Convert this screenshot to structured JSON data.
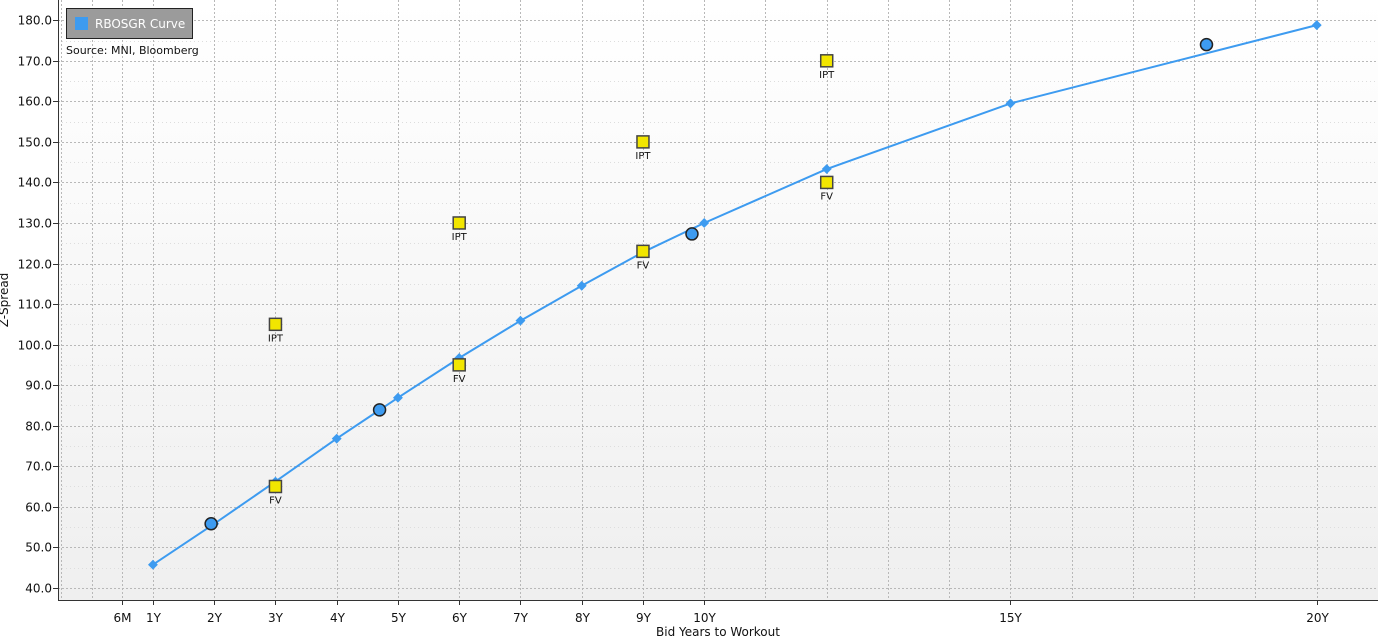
{
  "chart_data": {
    "type": "line",
    "source": "Source: MNI, Bloomberg",
    "xlabel": "Bid Years to Workout",
    "ylabel": "Z-Spread",
    "ylim": [
      37,
      185
    ],
    "xlim": [
      -0.55,
      21.0
    ],
    "legend_placement": "top-left",
    "grid": true,
    "y_ticks": [
      {
        "value": 40,
        "label": "40.0"
      },
      {
        "value": 50,
        "label": "50.0"
      },
      {
        "value": 60,
        "label": "60.0"
      },
      {
        "value": 70,
        "label": "70.0"
      },
      {
        "value": 80,
        "label": "80.0"
      },
      {
        "value": 90,
        "label": "90.0"
      },
      {
        "value": 100,
        "label": "100.0"
      },
      {
        "value": 110,
        "label": "110.0"
      },
      {
        "value": 120,
        "label": "120.0"
      },
      {
        "value": 130,
        "label": "130.0"
      },
      {
        "value": 140,
        "label": "140.0"
      },
      {
        "value": 150,
        "label": "150.0"
      },
      {
        "value": 160,
        "label": "160.0"
      },
      {
        "value": 170,
        "label": "170.0"
      },
      {
        "value": 180,
        "label": "180.0"
      }
    ],
    "x_ticks": [
      {
        "value": 0.5,
        "label": "6M"
      },
      {
        "value": 1,
        "label": "1Y"
      },
      {
        "value": 2,
        "label": "2Y"
      },
      {
        "value": 3,
        "label": "3Y"
      },
      {
        "value": 4,
        "label": "4Y"
      },
      {
        "value": 5,
        "label": "5Y"
      },
      {
        "value": 6,
        "label": "6Y"
      },
      {
        "value": 7,
        "label": "7Y"
      },
      {
        "value": 8,
        "label": "8Y"
      },
      {
        "value": 9,
        "label": "9Y"
      },
      {
        "value": 10,
        "label": "10Y"
      },
      {
        "value": 15,
        "label": "15Y"
      },
      {
        "value": 20,
        "label": "20Y"
      }
    ],
    "x_minor_ticks": [
      -0.5,
      0,
      11,
      12,
      13,
      14,
      16,
      17,
      18,
      19
    ],
    "series": [
      {
        "name": "RBOSGR Curve",
        "kind": "line",
        "color": "#3d9bf0",
        "points": [
          {
            "x": 1,
            "y": 45.7
          },
          {
            "x": 2,
            "y": 55.8
          },
          {
            "x": 3,
            "y": 66.2
          },
          {
            "x": 4,
            "y": 76.8
          },
          {
            "x": 5,
            "y": 86.9
          },
          {
            "x": 6,
            "y": 96.7
          },
          {
            "x": 7,
            "y": 105.9
          },
          {
            "x": 8,
            "y": 114.5
          },
          {
            "x": 9,
            "y": 122.8
          },
          {
            "x": 10,
            "y": 130.0
          },
          {
            "x": 12,
            "y": 143.3
          },
          {
            "x": 15,
            "y": 159.5
          },
          {
            "x": 20,
            "y": 178.8
          }
        ]
      },
      {
        "kind": "bonds",
        "color": "#3d9bf0",
        "points": [
          {
            "x": 1.95,
            "y": 55.8
          },
          {
            "x": 4.7,
            "y": 83.9
          },
          {
            "x": 9.8,
            "y": 127.3
          },
          {
            "x": 18.2,
            "y": 174.0
          }
        ]
      },
      {
        "kind": "IPT",
        "color": "#f2e600",
        "points": [
          {
            "x": 3,
            "y": 105,
            "label": "IPT"
          },
          {
            "x": 6,
            "y": 130,
            "label": "IPT"
          },
          {
            "x": 9,
            "y": 150,
            "label": "IPT"
          },
          {
            "x": 12,
            "y": 170,
            "label": "IPT"
          }
        ]
      },
      {
        "kind": "FV",
        "color": "#f2e600",
        "points": [
          {
            "x": 3,
            "y": 65,
            "label": "FV"
          },
          {
            "x": 6,
            "y": 95,
            "label": "FV"
          },
          {
            "x": 9,
            "y": 123,
            "label": "FV"
          },
          {
            "x": 12,
            "y": 140,
            "label": "FV"
          }
        ]
      }
    ]
  }
}
